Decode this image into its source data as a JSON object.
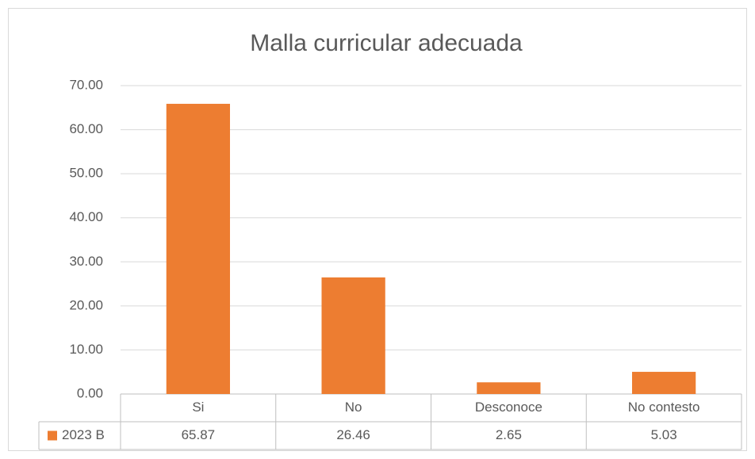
{
  "chart_data": {
    "type": "bar",
    "title": "Malla curricular adecuada",
    "categories": [
      "Si",
      "No",
      "Desconoce",
      "No contesto"
    ],
    "series": [
      {
        "name": "2023 B",
        "color": "#ed7d31",
        "values": [
          65.87,
          26.46,
          2.65,
          5.03
        ]
      }
    ],
    "ylim": [
      0,
      70
    ],
    "yticks": [
      {
        "value": 0,
        "label": "0.00"
      },
      {
        "value": 10,
        "label": "10.00"
      },
      {
        "value": 20,
        "label": "20.00"
      },
      {
        "value": 30,
        "label": "30.00"
      },
      {
        "value": 40,
        "label": "40.00"
      },
      {
        "value": 50,
        "label": "50.00"
      },
      {
        "value": 60,
        "label": "60.00"
      },
      {
        "value": 70,
        "label": "70.00"
      }
    ],
    "grid": true,
    "data_table": true
  }
}
